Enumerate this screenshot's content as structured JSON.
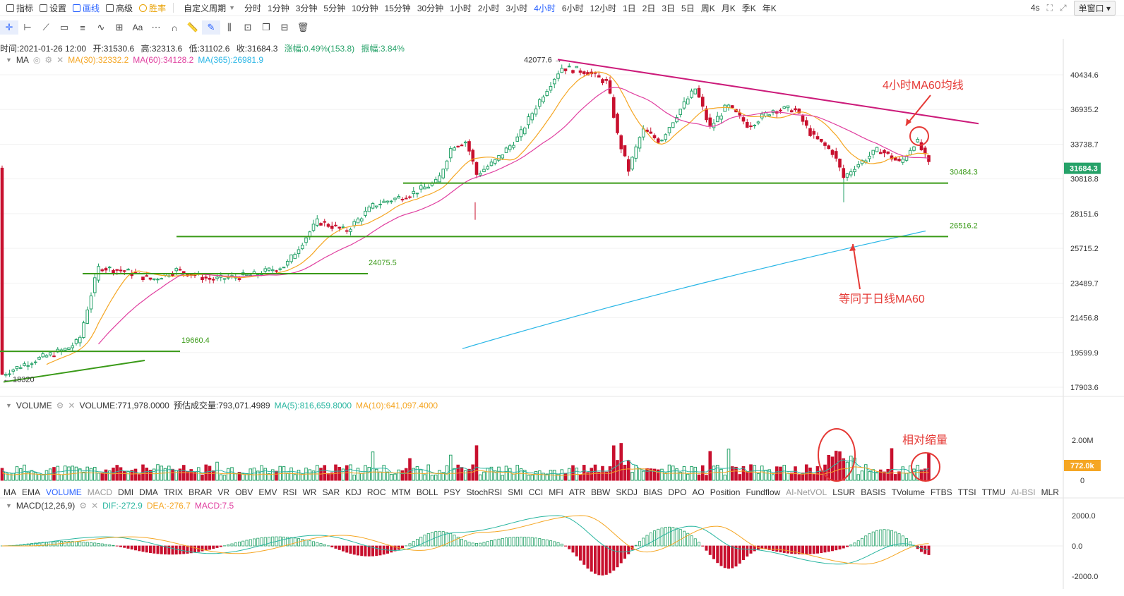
{
  "topbar": {
    "items": [
      {
        "label": "指标",
        "icon": "indicator-icon"
      },
      {
        "label": "设置",
        "icon": "settings-icon"
      },
      {
        "label": "画线",
        "icon": "draw-line-icon",
        "active": true
      },
      {
        "label": "高级",
        "icon": "advanced-icon"
      },
      {
        "label": "胜率",
        "icon": "win-rate-icon",
        "gold": true
      }
    ],
    "custom_period": "自定义周期",
    "periods": [
      "分时",
      "1分钟",
      "3分钟",
      "5分钟",
      "10分钟",
      "15分钟",
      "30分钟",
      "1小时",
      "2小时",
      "3小时",
      "4小时",
      "6小时",
      "12小时",
      "1日",
      "2日",
      "3日",
      "5日",
      "周K",
      "月K",
      "季K",
      "年K"
    ],
    "active_period": "4小时",
    "refresh": "4s",
    "window_mode": "单窗口"
  },
  "ohlc_line": {
    "time": "时间:2021-01-26 12:00",
    "open": "开:31530.6",
    "high": "高:32313.6",
    "low": "低:31102.6",
    "close": "收:31684.3",
    "change": "涨幅:0.49%(153.8)",
    "amplitude": "振幅:3.84%"
  },
  "ma_legend": {
    "name": "MA",
    "ma30": "MA(30):32332.2",
    "ma60": "MA(60):34128.2",
    "ma365": "MA(365):26981.9"
  },
  "volume_legend": {
    "name": "VOLUME",
    "volume": "VOLUME:771,978.0000",
    "estimated": "预估成交量:793,071.4989",
    "ma5": "MA(5):816,659.8000",
    "ma10": "MA(10):641,097.4000"
  },
  "macd_legend": {
    "name": "MACD(12,26,9)",
    "dif": "DIF:-272.9",
    "dea": "DEA:-276.7",
    "macd": "MACD:7.5"
  },
  "price_axis": [
    "40434.6",
    "36935.2",
    "33738.7",
    "30818.8",
    "28151.6",
    "25715.2",
    "23489.7",
    "21456.8",
    "19599.9",
    "17903.6"
  ],
  "current_price": "31684.3",
  "volume_axis": [
    "2.00M",
    "0"
  ],
  "current_volume": "772.0k",
  "macd_axis": [
    "2000.0",
    "0.0",
    "-2000.0"
  ],
  "price_labels": {
    "high": "42077.6",
    "low": "18320",
    "level_30484": "30484.3",
    "level_26516": "26516.2",
    "level_24075": "24075.5",
    "level_19660": "19660.4"
  },
  "annotations": {
    "ma60_4h": "4小时MA60均线",
    "daily_ma60": "等同于日线MA60",
    "volume_shrink": "相对缩量"
  },
  "indicator_tabs": [
    {
      "label": "MA"
    },
    {
      "label": "EMA"
    },
    {
      "label": "VOLUME",
      "on": true
    },
    {
      "label": "MACD",
      "dim": true
    },
    {
      "label": "DMI"
    },
    {
      "label": "DMA"
    },
    {
      "label": "TRIX"
    },
    {
      "label": "BRAR"
    },
    {
      "label": "VR"
    },
    {
      "label": "OBV"
    },
    {
      "label": "EMV"
    },
    {
      "label": "RSI"
    },
    {
      "label": "WR"
    },
    {
      "label": "SAR"
    },
    {
      "label": "KDJ"
    },
    {
      "label": "ROC"
    },
    {
      "label": "MTM"
    },
    {
      "label": "BOLL"
    },
    {
      "label": "PSY"
    },
    {
      "label": "StochRSI"
    },
    {
      "label": "SMI"
    },
    {
      "label": "CCI"
    },
    {
      "label": "MFI"
    },
    {
      "label": "ATR"
    },
    {
      "label": "BBW"
    },
    {
      "label": "SKDJ"
    },
    {
      "label": "BIAS"
    },
    {
      "label": "DPO"
    },
    {
      "label": "AO"
    },
    {
      "label": "Position"
    },
    {
      "label": "Fundflow"
    },
    {
      "label": "AI-NetVOL",
      "dim": true
    },
    {
      "label": "LSUR"
    },
    {
      "label": "BASIS"
    },
    {
      "label": "TVolume"
    },
    {
      "label": "FTBS"
    },
    {
      "label": "TTSI"
    },
    {
      "label": "TTMU"
    },
    {
      "label": "AI-BSI",
      "dim": true
    },
    {
      "label": "MLR"
    }
  ],
  "colors": {
    "up": "#26a269",
    "down": "#c8102e",
    "ma30": "#f5a623",
    "ma60": "#e040a0",
    "ma365": "#29b6e6",
    "trend": "#cc1b7a",
    "support": "#3a9a18",
    "annotation": "#e53935",
    "active": "#2962ff"
  },
  "chart_data": {
    "type": "candlestick",
    "interval": "4小时",
    "last_bar": {
      "time": "2021-01-26 12:00",
      "open": 31530.6,
      "high": 32313.6,
      "low": 31102.6,
      "close": 31684.3
    },
    "marked_high": 42077.6,
    "marked_low": 18320,
    "horizontal_levels": [
      30484.3,
      26516.2,
      24075.5,
      19660.4
    ],
    "ma": {
      "MA30": 32332.2,
      "MA60": 34128.2,
      "MA365": 26981.9
    },
    "price_ticks": [
      40434.6,
      36935.2,
      33738.7,
      30818.8,
      28151.6,
      25715.2,
      23489.7,
      21456.8,
      19599.9,
      17903.6
    ],
    "volume": {
      "last": 771978.0,
      "estimated": 793071.4989,
      "MA5": 816659.8,
      "MA10": 641097.4
    },
    "macd": {
      "DIF": -272.9,
      "DEA": -276.7,
      "MACD": 7.5,
      "ticks": [
        2000.0,
        0.0,
        -2000.0
      ]
    }
  }
}
